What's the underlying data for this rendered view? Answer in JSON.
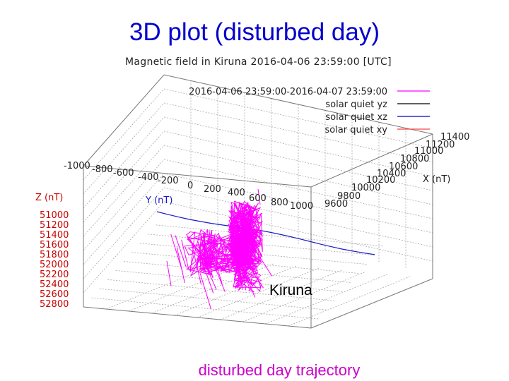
{
  "slide": {
    "title": "3D plot (disturbed day)",
    "caption": "disturbed day trajectory",
    "station_label": "Kiruna"
  },
  "chart_data": {
    "type": "scatter",
    "title": "Magnetic field in Kiruna 2016-04-06 23:59:00 [UTC]",
    "xlabel": "X (nT)",
    "ylabel": "Y (nT)",
    "zlabel": "Z (nT)",
    "x_ticks": [
      "9600",
      "9800",
      "10000",
      "10200",
      "10400",
      "10600",
      "10800",
      "11000",
      "11200",
      "11400"
    ],
    "y_ticks": [
      "-1000",
      "-800",
      "-600",
      "-400",
      "-200",
      "0",
      "200",
      "400",
      "600",
      "800",
      "1000"
    ],
    "z_ticks": [
      "51000",
      "51200",
      "51400",
      "51600",
      "51800",
      "52000",
      "52200",
      "52400",
      "52600",
      "52800"
    ],
    "grid": true,
    "legend_position": "top-right",
    "series": [
      {
        "name": "2016-04-06 23:59:00-2016-04-07 23:59:00",
        "color": "#ff00ff"
      },
      {
        "name": "solar quiet yz",
        "color": "#000000"
      },
      {
        "name": "solar quiet xz",
        "color": "#0000cc"
      },
      {
        "name": "solar quiet xy",
        "color": "#ff4040"
      }
    ]
  },
  "colors": {
    "title": "#0000cc",
    "z_axis": "#cc0000",
    "y_axis": "#0000cc",
    "trajectory": "#ff00ff",
    "grid": "#a0a0a0"
  }
}
